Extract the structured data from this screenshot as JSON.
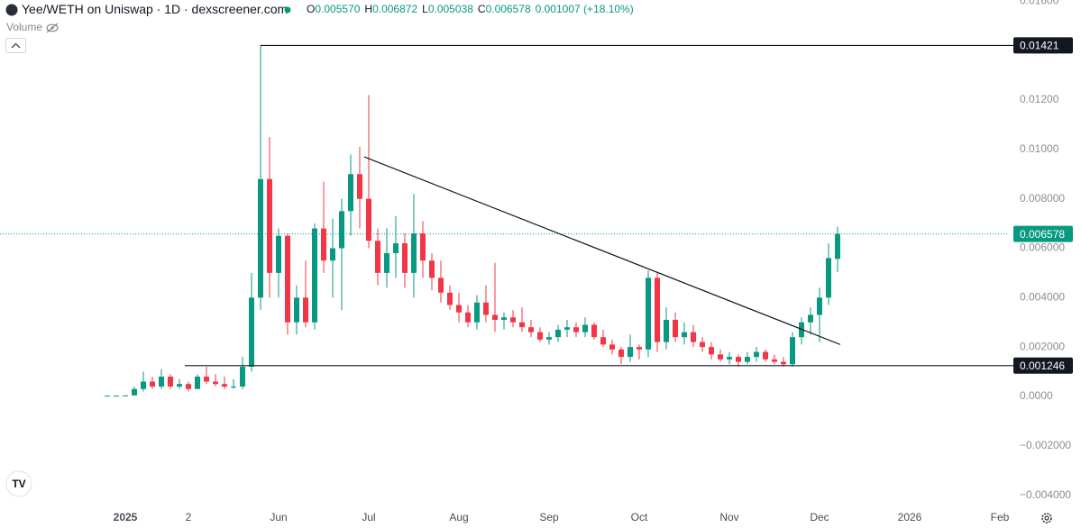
{
  "chart_data": {
    "type": "candlestick",
    "header": {
      "title": "Yee/WETH on Uniswap · 1D · dexscreener.com",
      "fields": [
        {
          "key": "O",
          "value": "0.005570"
        },
        {
          "key": "H",
          "value": "0.006872"
        },
        {
          "key": "L",
          "value": "0.005038"
        },
        {
          "key": "C",
          "value": "0.006578"
        }
      ],
      "change": "0.001007 (+18.10%)"
    },
    "volume_label": "Volume",
    "categories": [
      null,
      null,
      "2025",
      null,
      null,
      null,
      null,
      null,
      null,
      "2",
      null,
      null,
      null,
      null,
      null,
      null,
      null,
      null,
      null,
      "Jun",
      null,
      null,
      null,
      null,
      null,
      null,
      null,
      null,
      null,
      "Jul",
      null,
      null,
      null,
      null,
      null,
      null,
      null,
      null,
      null,
      "Aug",
      null,
      null,
      null,
      null,
      null,
      null,
      null,
      null,
      null,
      "Sep",
      null,
      null,
      null,
      null,
      null,
      null,
      null,
      null,
      null,
      "Oct",
      null,
      null,
      null,
      null,
      null,
      null,
      null,
      null,
      null,
      "Nov",
      null,
      null,
      null,
      null,
      null,
      null,
      null,
      null,
      null,
      "Dec",
      null,
      null,
      null,
      null,
      null,
      null,
      null,
      null,
      null,
      "2026",
      null,
      null,
      null,
      null,
      null,
      null,
      null,
      null,
      null,
      "Feb"
    ],
    "open": [
      3e-05,
      3e-05,
      3e-05,
      4e-05,
      0.0003,
      0.0006,
      0.0004,
      0.0008,
      0.0004,
      0.0005,
      0.0003,
      0.0008,
      0.0006,
      0.0005,
      0.0004,
      0.0004,
      0.0012,
      0.004,
      0.0088,
      0.005,
      0.0065,
      0.003,
      0.004,
      0.003,
      0.0068,
      0.0055,
      0.006,
      0.0075,
      0.009,
      0.008,
      0.0063,
      0.005,
      0.0058,
      0.0062,
      0.005,
      0.0066,
      0.0055,
      0.0048,
      0.0042,
      0.0037,
      0.0034,
      0.003,
      0.0038,
      0.0033,
      0.0031,
      0.0032,
      0.003,
      0.0028,
      0.0026,
      0.0023,
      0.0024,
      0.0027,
      0.0028,
      0.0026,
      0.0029,
      0.0024,
      0.0021,
      0.0019,
      0.0016,
      0.002,
      0.0019,
      0.0048,
      0.0022,
      0.0031,
      0.0024,
      0.0026,
      0.0022,
      0.002,
      0.0017,
      0.0015,
      0.0016,
      0.0014,
      0.0016,
      0.0018,
      0.0015,
      0.0014,
      0.0013,
      0.0024,
      0.003,
      0.0033,
      0.004,
      0.00557,
      null,
      null,
      null,
      null,
      null,
      null,
      null,
      null,
      null,
      null,
      null,
      null,
      null,
      null,
      null,
      null,
      null,
      null
    ],
    "high": [
      4e-05,
      4e-05,
      5e-05,
      0.0004,
      0.001,
      0.0008,
      0.0011,
      0.0009,
      0.0007,
      0.0006,
      0.0009,
      0.0012,
      0.0009,
      0.0008,
      0.0007,
      0.0016,
      0.005,
      0.01421,
      0.0105,
      0.0068,
      0.0066,
      0.0045,
      0.0055,
      0.007,
      0.0087,
      0.0072,
      0.008,
      0.0098,
      0.0101,
      0.0122,
      0.0068,
      0.0068,
      0.0073,
      0.0066,
      0.0082,
      0.0071,
      0.0058,
      0.0055,
      0.0045,
      0.0042,
      0.0037,
      0.0041,
      0.0045,
      0.0054,
      0.0034,
      0.0035,
      0.0036,
      0.0031,
      0.0028,
      0.0026,
      0.0029,
      0.0031,
      0.003,
      0.0032,
      0.003,
      0.0027,
      0.0023,
      0.002,
      0.0025,
      0.0021,
      0.0051,
      0.005,
      0.0036,
      0.0034,
      0.003,
      0.0029,
      0.0024,
      0.0022,
      0.0019,
      0.0018,
      0.0017,
      0.0018,
      0.002,
      0.0019,
      0.0017,
      0.0016,
      0.0026,
      0.0032,
      0.0036,
      0.0044,
      0.0062,
      0.006872,
      null,
      null,
      null,
      null,
      null,
      null,
      null,
      null,
      null,
      null,
      null,
      null,
      null,
      null,
      null,
      null,
      null,
      null
    ],
    "low": [
      2e-05,
      2e-05,
      2e-05,
      4e-05,
      0.0002,
      0.0003,
      0.0003,
      0.0003,
      0.0003,
      0.0002,
      0.0003,
      0.0005,
      0.0004,
      0.0003,
      0.0003,
      0.0003,
      0.001,
      0.0035,
      0.004,
      0.004,
      0.0025,
      0.0025,
      0.0028,
      0.0027,
      0.005,
      0.004,
      0.0035,
      0.0065,
      0.0068,
      0.006,
      0.0045,
      0.0044,
      0.0048,
      0.0044,
      0.004,
      0.0048,
      0.0043,
      0.0038,
      0.0035,
      0.003,
      0.0028,
      0.0027,
      0.003,
      0.0026,
      0.0027,
      0.0028,
      0.0026,
      0.0024,
      0.0022,
      0.0021,
      0.0022,
      0.0024,
      0.0024,
      0.0024,
      0.0023,
      0.002,
      0.0017,
      0.0013,
      0.0014,
      0.0015,
      0.0016,
      0.0018,
      0.0019,
      0.0022,
      0.0021,
      0.002,
      0.0018,
      0.0015,
      0.0014,
      0.0013,
      0.0012,
      0.0013,
      0.0014,
      0.0014,
      0.0013,
      0.0012,
      0.0012,
      0.0021,
      0.0025,
      0.0022,
      0.0037,
      0.005038,
      null,
      null,
      null,
      null,
      null,
      null,
      null,
      null,
      null,
      null,
      null,
      null,
      null,
      null,
      null,
      null,
      null,
      null
    ],
    "close": [
      3e-05,
      3e-05,
      4e-05,
      0.0003,
      0.0006,
      0.0004,
      0.0008,
      0.0004,
      0.0005,
      0.0003,
      0.0008,
      0.0006,
      0.0005,
      0.0004,
      0.0004,
      0.0012,
      0.004,
      0.0088,
      0.005,
      0.0065,
      0.003,
      0.004,
      0.003,
      0.0068,
      0.0055,
      0.006,
      0.0075,
      0.009,
      0.008,
      0.0063,
      0.005,
      0.0058,
      0.0062,
      0.005,
      0.0066,
      0.0055,
      0.0048,
      0.0042,
      0.0037,
      0.0034,
      0.003,
      0.0038,
      0.0033,
      0.0031,
      0.0032,
      0.003,
      0.0028,
      0.0026,
      0.0023,
      0.0024,
      0.0027,
      0.0028,
      0.0026,
      0.0029,
      0.0024,
      0.0021,
      0.0019,
      0.0016,
      0.002,
      0.0019,
      0.0048,
      0.0022,
      0.0031,
      0.0024,
      0.0026,
      0.0022,
      0.002,
      0.0017,
      0.0015,
      0.0016,
      0.0014,
      0.0016,
      0.0018,
      0.0015,
      0.0014,
      0.0013,
      0.0024,
      0.003,
      0.0033,
      0.004,
      0.0056,
      0.006578,
      null,
      null,
      null,
      null,
      null,
      null,
      null,
      null,
      null,
      null,
      null,
      null,
      null,
      null,
      null,
      null,
      null,
      null
    ],
    "up_color": "#089981",
    "down_color": "#f23645",
    "ylim": [
      -0.00438,
      0.01605
    ],
    "yticks": [
      {
        "value": 0.016,
        "label": "0.01600"
      },
      {
        "value": 0.014,
        "label": "0.01400"
      },
      {
        "value": 0.012,
        "label": "0.01200"
      },
      {
        "value": 0.01,
        "label": "0.01000"
      },
      {
        "value": 0.008,
        "label": "0.008000"
      },
      {
        "value": 0.006,
        "label": "0.006000"
      },
      {
        "value": 0.004,
        "label": "0.004000"
      },
      {
        "value": 0.002,
        "label": "0.002000"
      },
      {
        "value": 0,
        "label": "0.0000"
      },
      {
        "value": -0.002,
        "label": "−0.002000"
      },
      {
        "value": -0.004,
        "label": "−0.004000"
      }
    ],
    "grid": false,
    "levels": [
      {
        "value": 0.01421,
        "label": "0.01421",
        "from": 17
      },
      {
        "value": 0.001246,
        "label": "0.001246",
        "from": 8.6
      }
    ],
    "trendline": {
      "x": [
        28.5,
        81.3
      ],
      "y": [
        0.0097,
        0.0021
      ]
    },
    "last_price": {
      "value": 0.006578,
      "label": "0.006578"
    }
  }
}
